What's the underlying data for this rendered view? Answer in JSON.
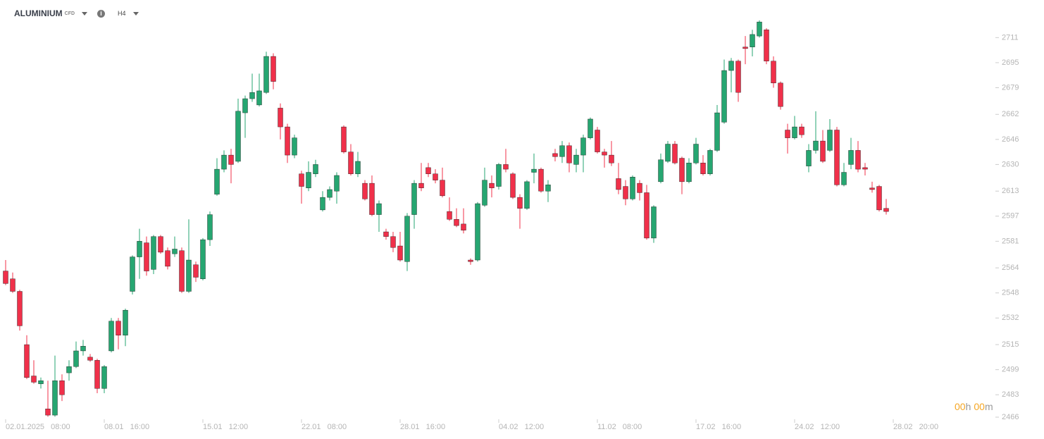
{
  "header": {
    "symbol": "ALUMINIUM",
    "instrument": "CFD",
    "timeframe": "H4"
  },
  "countdown": [
    "00",
    "h",
    "00",
    "m"
  ],
  "chart_data": {
    "type": "candlestick",
    "categories": [
      "02.01.2025 08:00",
      null,
      null,
      null,
      null,
      null,
      null,
      null,
      null,
      null,
      null,
      null,
      null,
      null,
      "08.01 16:00",
      null,
      null,
      null,
      null,
      null,
      null,
      null,
      null,
      null,
      null,
      null,
      null,
      null,
      "15.01 12:00",
      null,
      null,
      null,
      null,
      null,
      null,
      null,
      null,
      null,
      null,
      null,
      null,
      null,
      "22.01 08:00",
      null,
      null,
      null,
      null,
      null,
      null,
      null,
      null,
      null,
      null,
      null,
      null,
      null,
      "28.01 16:00",
      null,
      null,
      null,
      null,
      null,
      null,
      null,
      null,
      null,
      null,
      null,
      null,
      null,
      "04.02 12:00",
      null,
      null,
      null,
      null,
      null,
      null,
      null,
      null,
      null,
      null,
      null,
      null,
      null,
      "11.02 08:00",
      null,
      null,
      null,
      null,
      null,
      null,
      null,
      null,
      null,
      null,
      null,
      null,
      null,
      "17.02 16:00",
      null,
      null,
      null,
      null,
      null,
      null,
      null,
      null,
      null,
      null,
      null,
      null,
      null,
      "24.02 12:00",
      null,
      null,
      null,
      null,
      null,
      null,
      null,
      null,
      null,
      null,
      null,
      null,
      null,
      "28.02 20:00"
    ],
    "open": [
      2562,
      2557,
      2549,
      2515,
      2495,
      2490,
      2474,
      2470,
      2492,
      2497,
      2501,
      2511,
      2507,
      2505,
      2487,
      2511,
      2530,
      2521,
      2549,
      2571,
      2580,
      2563,
      2584,
      2575,
      2573,
      2575,
      2549,
      2566,
      2557,
      2582,
      2611,
      2627,
      2636,
      2632,
      2663,
      2672,
      2668,
      2676,
      2699,
      2666,
      2654,
      2636,
      2624,
      2615,
      2624,
      2601,
      2609,
      2613,
      2654,
      2638,
      2624,
      2618,
      2618,
      2598,
      2587,
      2584,
      2578,
      2568,
      2598,
      2618,
      2628,
      2624,
      2620,
      2600,
      2595,
      2592,
      2569,
      2569,
      2604,
      2618,
      2616,
      2630,
      2624,
      2609,
      2602,
      2625,
      2627,
      2613,
      2637,
      2635,
      2642,
      2630,
      2636,
      2647,
      2652,
      2638,
      2636,
      2621,
      2616,
      2608,
      2618,
      2612,
      2583,
      2619,
      2632,
      2643,
      2634,
      2619,
      2631,
      2631,
      2624,
      2639,
      2657,
      2690,
      2696,
      2705,
      2705,
      2712,
      2716,
      2696,
      2682,
      2652,
      2647,
      2654,
      2629,
      2639,
      2645,
      2639,
      2652,
      2617,
      2630,
      2639,
      2628,
      2615,
      2616,
      2602,
      null
    ],
    "high": [
      2569,
      2561,
      2550,
      2521,
      2505,
      2494,
      2492,
      2508,
      2496,
      2505,
      2517,
      2518,
      2509,
      2506,
      2502,
      2532,
      2532,
      2538,
      2572,
      2589,
      2584,
      2585,
      2585,
      2577,
      2584,
      2577,
      2595,
      2568,
      2583,
      2600,
      2634,
      2639,
      2640,
      2672,
      2674,
      2688,
      2688,
      2702,
      2701,
      2669,
      2656,
      2649,
      2626,
      2632,
      2633,
      2613,
      2616,
      2625,
      2655,
      2643,
      2638,
      2620,
      2623,
      2607,
      2589,
      2587,
      2587,
      2599,
      2620,
      2631,
      2631,
      2627,
      2628,
      2609,
      2602,
      2602,
      2570,
      2606,
      2628,
      2623,
      2631,
      2640,
      2625,
      2611,
      2620,
      2637,
      2628,
      2620,
      2640,
      2645,
      2644,
      2640,
      2649,
      2660,
      2654,
      2640,
      2645,
      2631,
      2620,
      2623,
      2620,
      2617,
      2604,
      2637,
      2645,
      2645,
      2635,
      2634,
      2647,
      2636,
      2640,
      2668,
      2697,
      2698,
      2697,
      2712,
      2716,
      2722,
      2717,
      2699,
      2683,
      2656,
      2661,
      2656,
      2643,
      2664,
      2652,
      2659,
      2654,
      2631,
      2647,
      2645,
      2631,
      2619,
      2617,
      2608,
      null
    ],
    "low": [
      2553,
      2548,
      2524,
      2493,
      2490,
      2487,
      2469,
      2469,
      2479,
      2492,
      2500,
      2508,
      2504,
      2484,
      2484,
      2510,
      2512,
      2514,
      2547,
      2557,
      2559,
      2560,
      2573,
      2563,
      2571,
      2548,
      2548,
      2555,
      2556,
      2578,
      2610,
      2625,
      2618,
      2631,
      2647,
      2670,
      2667,
      2675,
      2678,
      2646,
      2631,
      2634,
      2605,
      2613,
      2622,
      2600,
      2607,
      2605,
      2637,
      2623,
      2622,
      2607,
      2597,
      2587,
      2582,
      2574,
      2568,
      2562,
      2589,
      2613,
      2622,
      2618,
      2609,
      2594,
      2590,
      2586,
      2566,
      2568,
      2603,
      2609,
      2614,
      2625,
      2608,
      2589,
      2601,
      2618,
      2612,
      2606,
      2632,
      2631,
      2625,
      2625,
      2625,
      2646,
      2637,
      2628,
      2629,
      2611,
      2604,
      2607,
      2607,
      2582,
      2580,
      2618,
      2631,
      2630,
      2611,
      2618,
      2630,
      2623,
      2623,
      2638,
      2656,
      2676,
      2670,
      2694,
      2699,
      2711,
      2694,
      2679,
      2665,
      2637,
      2646,
      2647,
      2625,
      2637,
      2631,
      2638,
      2616,
      2616,
      2627,
      2625,
      2623,
      2612,
      2600,
      2598,
      null
    ],
    "close": [
      2554,
      2549,
      2527,
      2494,
      2491,
      2492,
      2470,
      2492,
      2483,
      2501,
      2511,
      2514,
      2505,
      2487,
      2501,
      2530,
      2521,
      2537,
      2571,
      2581,
      2562,
      2584,
      2574,
      2565,
      2576,
      2549,
      2569,
      2558,
      2582,
      2598,
      2627,
      2636,
      2630,
      2664,
      2672,
      2676,
      2677,
      2699,
      2683,
      2654,
      2636,
      2647,
      2616,
      2625,
      2630,
      2609,
      2614,
      2623,
      2638,
      2624,
      2632,
      2608,
      2598,
      2605,
      2584,
      2577,
      2569,
      2597,
      2618,
      2615,
      2624,
      2620,
      2610,
      2595,
      2591,
      2588,
      2568,
      2605,
      2620,
      2615,
      2630,
      2627,
      2609,
      2602,
      2619,
      2627,
      2613,
      2617,
      2635,
      2642,
      2631,
      2636,
      2647,
      2659,
      2638,
      2636,
      2631,
      2614,
      2608,
      2622,
      2612,
      2583,
      2603,
      2633,
      2643,
      2631,
      2619,
      2631,
      2643,
      2624,
      2639,
      2663,
      2690,
      2696,
      2676,
      2704,
      2713,
      2721,
      2696,
      2682,
      2667,
      2647,
      2654,
      2649,
      2639,
      2645,
      2632,
      2652,
      2617,
      2625,
      2639,
      2627,
      2627,
      2614,
      2601,
      2600,
      null
    ],
    "up_color": "#26a671",
    "down_color": "#f0304a",
    "ylim": [
      2466,
      2735
    ],
    "yticks": [
      2711,
      2695,
      2679,
      2662,
      2646,
      2630,
      2613,
      2597,
      2581,
      2564,
      2548,
      2532,
      2515,
      2499,
      2483,
      2466
    ]
  }
}
